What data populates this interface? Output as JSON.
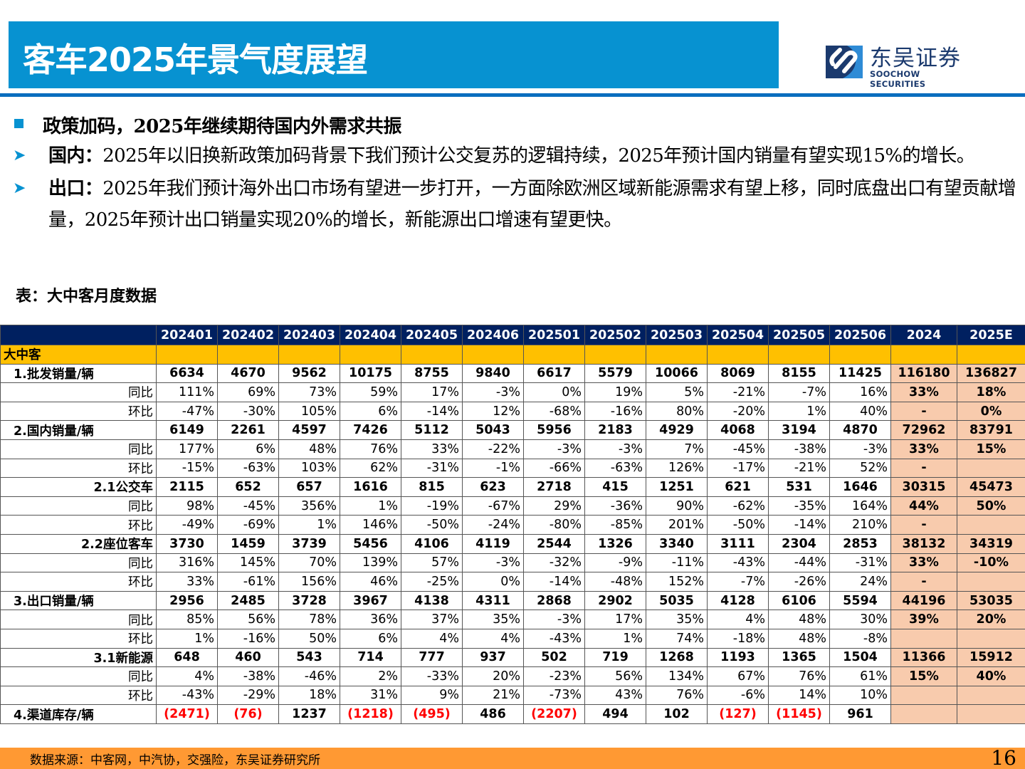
{
  "header": {
    "title": "客车2025年景气度展望",
    "logo": {
      "cn": "东吴证券",
      "en": "SOOCHOW SECURITIES"
    }
  },
  "bullets": {
    "main": "政策加码，2025年继续期待国内外需求共振",
    "items": [
      {
        "lead": "国内：",
        "text": "2025年以旧换新政策加码背景下我们预计公交复苏的逻辑持续，2025年预计国内销量有望实现15%的增长。"
      },
      {
        "lead": "出口：",
        "text": "2025年我们预计海外出口市场有望进一步打开，一方面除欧洲区域新能源需求有望上移，同时底盘出口有望贡献增量，2025年预计出口销量实现20%的增长，新能源出口增速有望更快。"
      }
    ]
  },
  "table": {
    "caption": "表：大中客月度数据",
    "columns": [
      "",
      "202401",
      "202402",
      "202403",
      "202404",
      "202405",
      "202406",
      "202501",
      "202502",
      "202503",
      "202504",
      "202505",
      "202506",
      "2024",
      "2025E"
    ],
    "section": "大中客",
    "rows": [
      {
        "label": "1.批发销量/辆",
        "type": "ind",
        "values": [
          "6634",
          "4670",
          "9562",
          "10175",
          "8755",
          "9840",
          "6617",
          "5579",
          "10066",
          "8069",
          "8155",
          "11425"
        ],
        "annual": [
          "116180",
          "136827"
        ]
      },
      {
        "label": "同比",
        "type": "ratio",
        "values": [
          "111%",
          "69%",
          "73%",
          "59%",
          "17%",
          "-3%",
          "0%",
          "19%",
          "5%",
          "-21%",
          "-7%",
          "16%"
        ],
        "annual": [
          "33%",
          "18%"
        ]
      },
      {
        "label": "环比",
        "type": "ratio",
        "values": [
          "-47%",
          "-30%",
          "105%",
          "6%",
          "-14%",
          "12%",
          "-68%",
          "-16%",
          "80%",
          "-20%",
          "1%",
          "40%"
        ],
        "annual": [
          "-",
          "0%"
        ]
      },
      {
        "label": "2.国内销量/辆",
        "type": "ind",
        "values": [
          "6149",
          "2261",
          "4597",
          "7426",
          "5112",
          "5043",
          "5956",
          "2183",
          "4929",
          "4068",
          "3194",
          "4870"
        ],
        "annual": [
          "72962",
          "83791"
        ]
      },
      {
        "label": "同比",
        "type": "ratio",
        "values": [
          "177%",
          "6%",
          "48%",
          "76%",
          "33%",
          "-22%",
          "-3%",
          "-3%",
          "7%",
          "-45%",
          "-38%",
          "-3%"
        ],
        "annual": [
          "33%",
          "15%"
        ]
      },
      {
        "label": "环比",
        "type": "ratio",
        "values": [
          "-15%",
          "-63%",
          "103%",
          "62%",
          "-31%",
          "-1%",
          "-66%",
          "-63%",
          "126%",
          "-17%",
          "-21%",
          "52%"
        ],
        "annual": [
          "-",
          ""
        ]
      },
      {
        "label": "2.1公交车",
        "type": "sub",
        "values": [
          "2115",
          "652",
          "657",
          "1616",
          "815",
          "623",
          "2718",
          "415",
          "1251",
          "621",
          "531",
          "1646"
        ],
        "annual": [
          "30315",
          "45473"
        ]
      },
      {
        "label": "同比",
        "type": "ratio",
        "values": [
          "98%",
          "-45%",
          "356%",
          "1%",
          "-19%",
          "-67%",
          "29%",
          "-36%",
          "90%",
          "-62%",
          "-35%",
          "164%"
        ],
        "annual": [
          "44%",
          "50%"
        ]
      },
      {
        "label": "环比",
        "type": "ratio",
        "values": [
          "-49%",
          "-69%",
          "1%",
          "146%",
          "-50%",
          "-24%",
          "-80%",
          "-85%",
          "201%",
          "-50%",
          "-14%",
          "210%"
        ],
        "annual": [
          "-",
          ""
        ]
      },
      {
        "label": "2.2座位客车",
        "type": "sub",
        "values": [
          "3730",
          "1459",
          "3739",
          "5456",
          "4106",
          "4119",
          "2544",
          "1326",
          "3340",
          "3111",
          "2304",
          "2853"
        ],
        "annual": [
          "38132",
          "34319"
        ]
      },
      {
        "label": "同比",
        "type": "ratio",
        "values": [
          "316%",
          "145%",
          "70%",
          "139%",
          "57%",
          "-3%",
          "-32%",
          "-9%",
          "-11%",
          "-43%",
          "-44%",
          "-31%"
        ],
        "annual": [
          "33%",
          "-10%"
        ]
      },
      {
        "label": "环比",
        "type": "ratio",
        "values": [
          "33%",
          "-61%",
          "156%",
          "46%",
          "-25%",
          "0%",
          "-14%",
          "-48%",
          "152%",
          "-7%",
          "-26%",
          "24%"
        ],
        "annual": [
          "-",
          ""
        ]
      },
      {
        "label": "3.出口销量/辆",
        "type": "ind",
        "values": [
          "2956",
          "2485",
          "3728",
          "3967",
          "4138",
          "4311",
          "2868",
          "2902",
          "5035",
          "4128",
          "6106",
          "5594"
        ],
        "annual": [
          "44196",
          "53035"
        ]
      },
      {
        "label": "同比",
        "type": "ratio",
        "values": [
          "85%",
          "56%",
          "78%",
          "36%",
          "37%",
          "35%",
          "-3%",
          "17%",
          "35%",
          "4%",
          "48%",
          "30%"
        ],
        "annual": [
          "39%",
          "20%"
        ]
      },
      {
        "label": "环比",
        "type": "ratio",
        "values": [
          "1%",
          "-16%",
          "50%",
          "6%",
          "4%",
          "4%",
          "-43%",
          "1%",
          "74%",
          "-18%",
          "48%",
          "-8%"
        ],
        "annual": [
          "",
          ""
        ]
      },
      {
        "label": "3.1新能源",
        "type": "sub",
        "values": [
          "648",
          "460",
          "543",
          "714",
          "777",
          "937",
          "502",
          "719",
          "1268",
          "1193",
          "1365",
          "1504"
        ],
        "annual": [
          "11366",
          "15912"
        ]
      },
      {
        "label": "同比",
        "type": "ratio",
        "values": [
          "4%",
          "-38%",
          "-46%",
          "2%",
          "-33%",
          "20%",
          "-23%",
          "56%",
          "134%",
          "67%",
          "76%",
          "61%"
        ],
        "annual": [
          "15%",
          "40%"
        ]
      },
      {
        "label": "环比",
        "type": "ratio",
        "values": [
          "-43%",
          "-29%",
          "18%",
          "31%",
          "9%",
          "21%",
          "-73%",
          "43%",
          "76%",
          "-6%",
          "14%",
          "10%"
        ],
        "annual": [
          "",
          ""
        ]
      },
      {
        "label": "4.渠道库存/辆",
        "type": "ind",
        "values": [
          "(2471)",
          "(76)",
          "1237",
          "(1218)",
          "(495)",
          "486",
          "(2207)",
          "494",
          "102",
          "(127)",
          "(1145)",
          "961"
        ],
        "annual": [
          "",
          ""
        ]
      }
    ]
  },
  "footer": {
    "source": "数据来源：中客网，中汽协，交强险，东吴证券研究所",
    "page": "16"
  },
  "colors": {
    "title_bar": "#0792D1",
    "header_rule": "#0A6DBE",
    "table_header": "#002060",
    "section_row": "#FFC000",
    "annual_cols": "#F8CBAD",
    "negative": "#FF0000",
    "footer": "#FF9933"
  }
}
